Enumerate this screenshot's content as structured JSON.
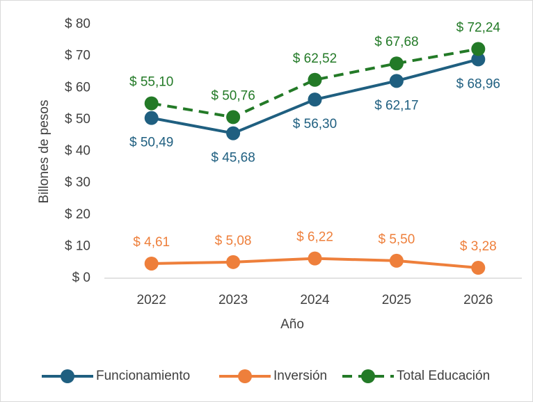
{
  "chart_data": {
    "type": "line",
    "x_label": "Año",
    "y_label": "Billones de pesos",
    "categories": [
      "2022",
      "2023",
      "2024",
      "2025",
      "2026"
    ],
    "series": [
      {
        "name": "Funcionamiento",
        "color": "#1f5f80",
        "dash": false,
        "label_position": "below",
        "values": [
          50.49,
          45.68,
          56.3,
          62.17,
          68.96
        ],
        "value_labels": [
          "$ 50,49",
          "$ 45,68",
          "$ 56,30",
          "$ 62,17",
          "$ 68,96"
        ]
      },
      {
        "name": "Inversión",
        "color": "#ee7f3b",
        "dash": false,
        "label_position": "above",
        "values": [
          4.61,
          5.08,
          6.22,
          5.5,
          3.28
        ],
        "value_labels": [
          "$ 4,61",
          "$ 5,08",
          "$ 6,22",
          "$ 5,50",
          "$ 3,28"
        ]
      },
      {
        "name": "Total Educación",
        "color": "#237a27",
        "dash": true,
        "label_position": "above",
        "values": [
          55.1,
          50.76,
          62.52,
          67.68,
          72.24
        ],
        "value_labels": [
          "$ 55,10",
          "$ 50,76",
          "$ 62,52",
          "$ 67,68",
          "$ 72,24"
        ]
      }
    ],
    "ylim": [
      0,
      80
    ],
    "yticks": [
      {
        "value": 0,
        "label": "$ 0"
      },
      {
        "value": 10,
        "label": "$ 10"
      },
      {
        "value": 20,
        "label": "$ 20"
      },
      {
        "value": 30,
        "label": "$ 30"
      },
      {
        "value": 40,
        "label": "$ 40"
      },
      {
        "value": 50,
        "label": "$ 50"
      },
      {
        "value": 60,
        "label": "$ 60"
      },
      {
        "value": 70,
        "label": "$ 70"
      },
      {
        "value": 80,
        "label": "$ 80"
      }
    ],
    "grid": false,
    "legend_position": "bottom"
  }
}
